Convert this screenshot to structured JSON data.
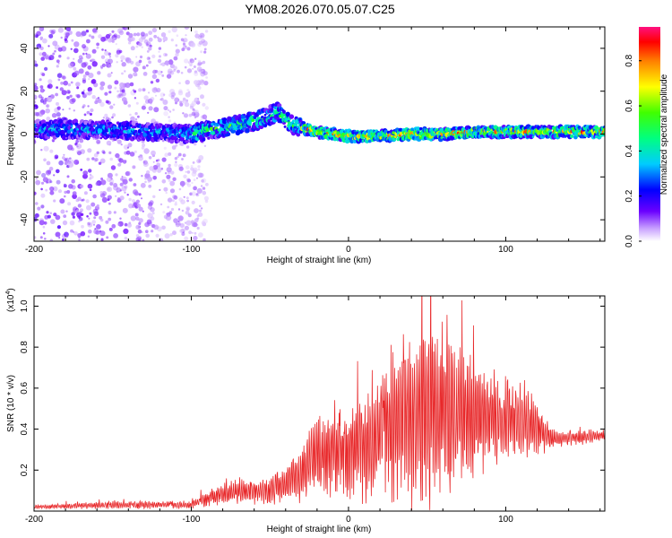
{
  "title": "YM08.2026.070.05.07.C25",
  "chart_data": [
    {
      "type": "heatmap",
      "title": "YM08.2026.070.05.07.C25",
      "xlabel": "Height of straight line (km)",
      "ylabel": "Frequency (Hz)",
      "xlim": [
        -200,
        163
      ],
      "ylim": [
        -50,
        50
      ],
      "xticks": [
        "-200",
        "-100",
        "0",
        "100"
      ],
      "yticks": [
        "-40",
        "-20",
        "0",
        "20",
        "40"
      ],
      "ridge": {
        "x": [
          -200,
          -150,
          -100,
          -80,
          -60,
          -45,
          -35,
          -20,
          0,
          20,
          40,
          60,
          80,
          100,
          120,
          163
        ],
        "freq": [
          2,
          2,
          0,
          3,
          6,
          10,
          4,
          1,
          -1,
          -1,
          0,
          0,
          1,
          1,
          1,
          1
        ]
      },
      "colorbar": {
        "label": "Normalized spectral amplitude",
        "ticks": [
          "0.0",
          "0.2",
          "0.4",
          "0.6",
          "0.8"
        ],
        "range": [
          0,
          0.95
        ]
      }
    },
    {
      "type": "line",
      "xlabel": "Height of straight line (km)",
      "ylabel": "SNR (10 * v/v)",
      "exponent_label": "(x10",
      "exponent_power": "4",
      "exponent_close": ")",
      "xlim": [
        -200,
        163
      ],
      "ylim": [
        0,
        1.05
      ],
      "xticks": [
        "-200",
        "-100",
        "0",
        "100"
      ],
      "yticks": [
        "0.2",
        "0.4",
        "0.6",
        "0.8",
        "1.0"
      ],
      "series": [
        {
          "name": "SNR",
          "color": "#e8282a",
          "envelope": {
            "x": [
              -200,
              -150,
              -100,
              -90,
              -70,
              -50,
              -30,
              -22,
              -10,
              0,
              10,
              20,
              30,
              40,
              50,
              60,
              70,
              80,
              100,
              110,
              120,
              130,
              163
            ],
            "base": [
              0.02,
              0.03,
              0.03,
              0.06,
              0.1,
              0.1,
              0.18,
              0.28,
              0.3,
              0.3,
              0.32,
              0.38,
              0.45,
              0.48,
              0.48,
              0.5,
              0.47,
              0.45,
              0.44,
              0.45,
              0.4,
              0.35,
              0.37
            ],
            "amp": [
              0.01,
              0.02,
              0.02,
              0.04,
              0.07,
              0.07,
              0.15,
              0.22,
              0.25,
              0.26,
              0.3,
              0.38,
              0.45,
              0.52,
              0.55,
              0.5,
              0.42,
              0.33,
              0.22,
              0.2,
              0.15,
              0.05,
              0.03
            ]
          }
        }
      ]
    }
  ]
}
